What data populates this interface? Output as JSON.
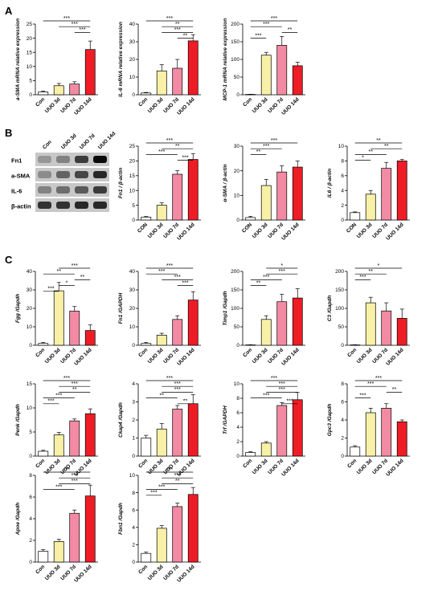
{
  "panel_labels": [
    "A",
    "B",
    "C"
  ],
  "colors": {
    "Con": "#ffffff",
    "UUO 3d": "#f7f0a6",
    "UUO 7d": "#f38aa3",
    "UUO 14d": "#ee1c25",
    "axis": "#000000"
  },
  "western_blot": {
    "lanes": [
      "Con",
      "UUO 3d",
      "UUO 7d",
      "UUO 14d"
    ],
    "rows": [
      "Fn1",
      "a-SMA",
      "IL-6",
      "β-actin"
    ]
  },
  "chart_data": [
    {
      "type": "bar",
      "panel": "A",
      "ylabel": "a-SMA mRNA relative expression",
      "categories": [
        "Con",
        "UUO 3d",
        "UUO 7d",
        "UUO 14d"
      ],
      "values": [
        1,
        3.2,
        3.8,
        16
      ],
      "errors": [
        0.3,
        0.8,
        0.8,
        3
      ],
      "ylim": [
        0,
        25
      ],
      "ticks": [
        "0",
        "5",
        "10",
        "15",
        "20",
        "25"
      ],
      "significance": [
        {
          "from": 2,
          "to": 3,
          "label": "***"
        },
        {
          "from": 0,
          "to": 3,
          "label": "***"
        },
        {
          "from": 1,
          "to": 3,
          "label": "***"
        }
      ]
    },
    {
      "type": "bar",
      "panel": "A",
      "ylabel": "IL-6 mRNA relative expression",
      "categories": [
        "Con",
        "UUO 3d",
        "UUO 7d",
        "UUO 14d"
      ],
      "values": [
        1,
        13.5,
        15,
        30.5
      ],
      "errors": [
        0.3,
        3.5,
        5,
        3.5
      ],
      "ylim": [
        0,
        40
      ],
      "ticks": [
        "0",
        "10",
        "20",
        "30",
        "40"
      ],
      "significance": [
        {
          "from": 0,
          "to": 3,
          "label": "***"
        },
        {
          "from": 1,
          "to": 3,
          "label": "***"
        },
        {
          "from": 2,
          "to": 3,
          "label": "**"
        },
        {
          "from": 1,
          "to": 3,
          "label": "**"
        }
      ]
    },
    {
      "type": "bar",
      "panel": "A",
      "ylabel": "MCP-1 mRNA relative expression",
      "categories": [
        "Con",
        "UUO 3d",
        "UUO 7d",
        "UUO 14d"
      ],
      "values": [
        1,
        112,
        140,
        82
      ],
      "errors": [
        0.5,
        8,
        25,
        10
      ],
      "ylim": [
        0,
        200
      ],
      "ticks": [
        "0",
        "50",
        "100",
        "150",
        "200"
      ],
      "significance": [
        {
          "from": 0,
          "to": 1,
          "label": "***"
        },
        {
          "from": 0,
          "to": 2,
          "label": "***"
        },
        {
          "from": 0,
          "to": 3,
          "label": "***"
        },
        {
          "from": 2,
          "to": 3,
          "label": "**"
        }
      ]
    },
    {
      "type": "bar",
      "panel": "B",
      "ylabel": "Fn1 / β-actin",
      "categories": [
        "CON",
        "UUO 3d",
        "UUO 7d",
        "UUO 14d"
      ],
      "values": [
        1,
        5,
        15.5,
        20.5
      ],
      "errors": [
        0.2,
        0.8,
        1.2,
        2
      ],
      "ylim": [
        0,
        25
      ],
      "ticks": [
        "0",
        "5",
        "10",
        "15",
        "20",
        "25"
      ],
      "significance": [
        {
          "from": 0,
          "to": 2,
          "label": "***"
        },
        {
          "from": 0,
          "to": 3,
          "label": "***"
        },
        {
          "from": 1,
          "to": 3,
          "label": "**"
        },
        {
          "from": 2,
          "to": 3,
          "label": "***"
        }
      ]
    },
    {
      "type": "bar",
      "panel": "B",
      "ylabel": "α-SMA / β-actin",
      "categories": [
        "CON",
        "UUO 3d",
        "UUO 7d",
        "UUO 14d"
      ],
      "values": [
        1,
        14,
        19.5,
        21.5
      ],
      "errors": [
        0.5,
        2.5,
        2.5,
        2.5
      ],
      "ylim": [
        0,
        30
      ],
      "ticks": [
        "0",
        "10",
        "20",
        "30"
      ],
      "significance": [
        {
          "from": 0,
          "to": 1,
          "label": "**"
        },
        {
          "from": 0,
          "to": 2,
          "label": "***"
        },
        {
          "from": 0,
          "to": 3,
          "label": "***"
        }
      ]
    },
    {
      "type": "bar",
      "panel": "B",
      "ylabel": "IL6 / β-actin",
      "categories": [
        "CON",
        "UUO 3d",
        "UUO 7d",
        "UUO 14d"
      ],
      "values": [
        1,
        3.5,
        7,
        8
      ],
      "errors": [
        0.1,
        0.5,
        0.8,
        0.2
      ],
      "ylim": [
        0,
        10
      ],
      "ticks": [
        "0",
        "2",
        "4",
        "6",
        "8",
        "10"
      ],
      "significance": [
        {
          "from": 0,
          "to": 1,
          "label": "*"
        },
        {
          "from": 0,
          "to": 2,
          "label": "**"
        },
        {
          "from": 0,
          "to": 3,
          "label": "**"
        },
        {
          "from": 1,
          "to": 3,
          "label": "**"
        }
      ]
    },
    {
      "type": "bar",
      "panel": "C",
      "ylabel": "Fgg /Gapdh",
      "categories": [
        "Con",
        "UUO 3d",
        "UUO 7d",
        "UUO 14d"
      ],
      "values": [
        1,
        29.5,
        18.5,
        8
      ],
      "errors": [
        0.5,
        4.5,
        2.5,
        3
      ],
      "ylim": [
        0,
        40
      ],
      "ticks": [
        "0",
        "10",
        "20",
        "30",
        "40"
      ],
      "significance": [
        {
          "from": 0,
          "to": 1,
          "label": "***"
        },
        {
          "from": 1,
          "to": 2,
          "label": "*"
        },
        {
          "from": 2,
          "to": 3,
          "label": "**"
        },
        {
          "from": 0,
          "to": 2,
          "label": "**"
        },
        {
          "from": 1,
          "to": 3,
          "label": "***"
        }
      ]
    },
    {
      "type": "bar",
      "panel": "C",
      "ylabel": "Fn1 /GAPDH",
      "categories": [
        "Con",
        "UUO 3d",
        "UUO 7d",
        "UUO 14d"
      ],
      "values": [
        1,
        5.5,
        14,
        24.5
      ],
      "errors": [
        0.5,
        1,
        2,
        4.5
      ],
      "ylim": [
        0,
        40
      ],
      "ticks": [
        "0",
        "10",
        "20",
        "30",
        "40"
      ],
      "significance": [
        {
          "from": 1,
          "to": 3,
          "label": "***"
        },
        {
          "from": 0,
          "to": 3,
          "label": "***"
        },
        {
          "from": 2,
          "to": 3,
          "label": "***"
        },
        {
          "from": 0,
          "to": 2,
          "label": "***"
        }
      ]
    },
    {
      "type": "bar",
      "panel": "C",
      "ylabel": "Timp1 /Gapdh",
      "categories": [
        "Con",
        "UUO 3d",
        "UUO 7d",
        "UUO 14d"
      ],
      "values": [
        1,
        70,
        118,
        128
      ],
      "errors": [
        0.5,
        10,
        20,
        25
      ],
      "ylim": [
        0,
        200
      ],
      "ticks": [
        "0",
        "50",
        "100",
        "150",
        "200"
      ],
      "significance": [
        {
          "from": 0,
          "to": 1,
          "label": "**"
        },
        {
          "from": 0,
          "to": 2,
          "label": "***"
        },
        {
          "from": 1,
          "to": 3,
          "label": "***"
        },
        {
          "from": 1,
          "to": 3,
          "label": "*"
        }
      ]
    },
    {
      "type": "bar",
      "panel": "C",
      "ylabel": "C3 /Gapdh",
      "categories": [
        "Con",
        "UUO 3d",
        "UUO 7d",
        "UUO 14d"
      ],
      "values": [
        1,
        115,
        93,
        73
      ],
      "errors": [
        0.5,
        15,
        22,
        25
      ],
      "ylim": [
        0,
        200
      ],
      "ticks": [
        "0",
        "50",
        "100",
        "150",
        "200"
      ],
      "significance": [
        {
          "from": 0,
          "to": 1,
          "label": "***"
        },
        {
          "from": 0,
          "to": 2,
          "label": "**"
        },
        {
          "from": 0,
          "to": 3,
          "label": "*"
        }
      ]
    },
    {
      "type": "bar",
      "panel": "C",
      "ylabel": "Penk /Gapdh",
      "categories": [
        "Con",
        "UUO 3d",
        "UUO 7d",
        "UUO 14d"
      ],
      "values": [
        1,
        4.4,
        7.3,
        8.8
      ],
      "errors": [
        0.2,
        0.5,
        0.4,
        1
      ],
      "ylim": [
        0,
        15
      ],
      "ticks": [
        "0",
        "5",
        "10",
        "15"
      ],
      "significance": [
        {
          "from": 0,
          "to": 1,
          "label": "***"
        },
        {
          "from": 0,
          "to": 2,
          "label": "***"
        },
        {
          "from": 0,
          "to": 3,
          "label": "***"
        },
        {
          "from": 1,
          "to": 3,
          "label": "**"
        },
        {
          "from": 1,
          "to": 3,
          "label": "***"
        }
      ]
    },
    {
      "type": "bar",
      "panel": "C",
      "ylabel": "Ckap4 /Gapdh",
      "categories": [
        "Con",
        "UUO 3d",
        "UUO 7d",
        "UUO 14d"
      ],
      "values": [
        1,
        1.5,
        2.6,
        2.9
      ],
      "errors": [
        0.15,
        0.3,
        0.2,
        0.5
      ],
      "ylim": [
        0,
        4
      ],
      "ticks": [
        "0",
        "1",
        "2",
        "3",
        "4"
      ],
      "significance": [
        {
          "from": 0,
          "to": 2,
          "label": "**"
        },
        {
          "from": 0,
          "to": 3,
          "label": "***"
        },
        {
          "from": 1,
          "to": 3,
          "label": "***"
        },
        {
          "from": 1,
          "to": 3,
          "label": "***"
        },
        {
          "from": 2,
          "to": 3,
          "label": "**"
        }
      ]
    },
    {
      "type": "bar",
      "panel": "C",
      "ylabel": "Trf /GAPDH",
      "categories": [
        "Con",
        "UUO 3d",
        "UUO 7d",
        "UUO 14d"
      ],
      "values": [
        0.5,
        1.8,
        7,
        7.8
      ],
      "errors": [
        0.1,
        0.2,
        0.4,
        1
      ],
      "ylim": [
        0,
        10
      ],
      "ticks": [
        "0",
        "2",
        "4",
        "6",
        "8",
        "10"
      ],
      "significance": [
        {
          "from": 0,
          "to": 2,
          "label": "***"
        },
        {
          "from": 0,
          "to": 3,
          "label": "***"
        },
        {
          "from": 1,
          "to": 3,
          "label": "***"
        },
        {
          "from": 1,
          "to": 3,
          "label": "***"
        },
        {
          "from": 2,
          "to": 3,
          "label": "***"
        }
      ]
    },
    {
      "type": "bar",
      "panel": "C",
      "ylabel": "Gpc3 /Gapdh",
      "categories": [
        "Con",
        "UUO 3d",
        "UUO 7d",
        "UUO 14d"
      ],
      "values": [
        1,
        4.8,
        5.3,
        3.8
      ],
      "errors": [
        0.15,
        0.5,
        0.5,
        0.2
      ],
      "ylim": [
        0,
        8
      ],
      "ticks": [
        "0",
        "2",
        "4",
        "6",
        "8"
      ],
      "significance": [
        {
          "from": 0,
          "to": 1,
          "label": "***"
        },
        {
          "from": 0,
          "to": 2,
          "label": "***"
        },
        {
          "from": 0,
          "to": 3,
          "label": "***"
        },
        {
          "from": 2,
          "to": 3,
          "label": "**"
        }
      ]
    },
    {
      "type": "bar",
      "panel": "C",
      "ylabel": "Apoe /Gapdh",
      "categories": [
        "Con",
        "UUO 3d",
        "UUO 7d",
        "UUO 14d"
      ],
      "values": [
        1,
        1.9,
        4.5,
        6.1
      ],
      "errors": [
        0.15,
        0.2,
        0.3,
        1
      ],
      "ylim": [
        0,
        8
      ],
      "ticks": [
        "0",
        "2",
        "4",
        "6",
        "8"
      ],
      "significance": [
        {
          "from": 0,
          "to": 2,
          "label": "***"
        },
        {
          "from": 0,
          "to": 3,
          "label": "***"
        },
        {
          "from": 1,
          "to": 3,
          "label": "***"
        },
        {
          "from": 1,
          "to": 3,
          "label": "***"
        }
      ]
    },
    {
      "type": "bar",
      "panel": "C",
      "ylabel": "Fbn1 /Gapdh",
      "categories": [
        "Con",
        "UUO 3d",
        "UUO 7d",
        "UUO 14d"
      ],
      "values": [
        1,
        3.9,
        6.4,
        7.8
      ],
      "errors": [
        0.15,
        0.3,
        0.4,
        0.8
      ],
      "ylim": [
        0,
        10
      ],
      "ticks": [
        "0",
        "2",
        "4",
        "6",
        "8",
        "10"
      ],
      "significance": [
        {
          "from": 0,
          "to": 1,
          "label": "***"
        },
        {
          "from": 0,
          "to": 2,
          "label": "***"
        },
        {
          "from": 0,
          "to": 3,
          "label": "***"
        },
        {
          "from": 1,
          "to": 3,
          "label": "**"
        },
        {
          "from": 1,
          "to": 3,
          "label": "***"
        }
      ]
    }
  ]
}
